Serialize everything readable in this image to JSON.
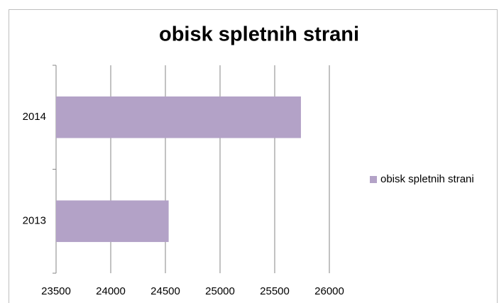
{
  "chart_data": {
    "type": "bar",
    "orientation": "horizontal",
    "title": "obisk spletnih strani",
    "categories": [
      "2013",
      "2014"
    ],
    "series": [
      {
        "name": "obisk spletnih strani",
        "color": "#b3a2c7",
        "values": [
          24530,
          25740
        ]
      }
    ],
    "xlim": [
      23500,
      26000
    ],
    "xticks": [
      23500,
      24000,
      24500,
      25000,
      25500,
      26000
    ],
    "grid": true,
    "legend": "right"
  }
}
